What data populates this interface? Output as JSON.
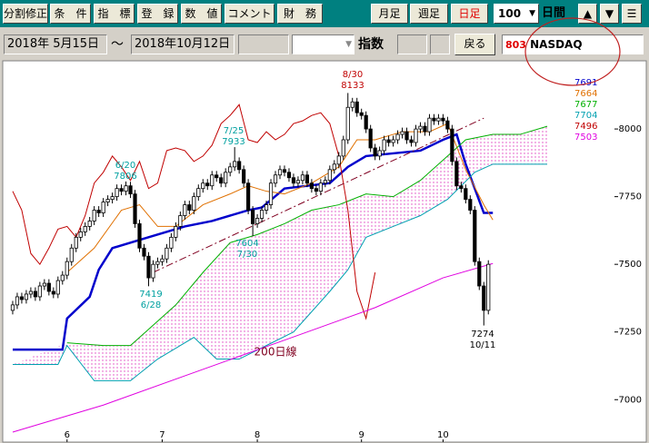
{
  "toolbar": {
    "buttons": [
      "分割修正",
      "条　件",
      "指　標",
      "登　録",
      "数　値",
      "コメント",
      "財　務"
    ],
    "periods": [
      "月足",
      "週足",
      "日足"
    ],
    "days": "100",
    "days_unit": "日間",
    "nav": [
      "▲",
      "▼",
      "☰"
    ]
  },
  "range": {
    "from": "2018年 5月15日",
    "sep": "～",
    "to": "2018年10月12日",
    "kind": "指数",
    "back": "戻る",
    "code": "803",
    "name": "NASDAQ"
  },
  "chart_data": {
    "type": "candlestick",
    "xlim": [
      -2,
      120
    ],
    "ylim": [
      6860,
      8225
    ],
    "xticks": [
      {
        "value": 12,
        "label": "6"
      },
      {
        "value": 33,
        "label": "7"
      },
      {
        "value": 54,
        "label": "8"
      },
      {
        "value": 77,
        "label": "9"
      },
      {
        "value": 95,
        "label": "10"
      }
    ],
    "yticks": [
      7000,
      7250,
      7500,
      7750,
      8000
    ],
    "up_color": "#ffffff",
    "down_color": "#000000",
    "candles": [
      [
        7330,
        7365,
        7315,
        7350
      ],
      [
        7350,
        7395,
        7335,
        7380
      ],
      [
        7380,
        7395,
        7355,
        7370
      ],
      [
        7370,
        7405,
        7355,
        7390
      ],
      [
        7390,
        7415,
        7375,
        7400
      ],
      [
        7400,
        7415,
        7365,
        7380
      ],
      [
        7380,
        7435,
        7365,
        7420
      ],
      [
        7420,
        7445,
        7405,
        7430
      ],
      [
        7430,
        7445,
        7385,
        7400
      ],
      [
        7400,
        7415,
        7375,
        7390
      ],
      [
        7390,
        7455,
        7375,
        7440
      ],
      [
        7440,
        7475,
        7425,
        7460
      ],
      [
        7460,
        7525,
        7445,
        7510
      ],
      [
        7510,
        7575,
        7495,
        7560
      ],
      [
        7560,
        7615,
        7545,
        7600
      ],
      [
        7600,
        7635,
        7585,
        7620
      ],
      [
        7620,
        7655,
        7605,
        7640
      ],
      [
        7640,
        7675,
        7625,
        7660
      ],
      [
        7660,
        7715,
        7645,
        7700
      ],
      [
        7700,
        7715,
        7675,
        7690
      ],
      [
        7690,
        7745,
        7675,
        7730
      ],
      [
        7730,
        7755,
        7715,
        7740
      ],
      [
        7740,
        7765,
        7725,
        7750
      ],
      [
        7750,
        7795,
        7735,
        7780
      ],
      [
        7780,
        7795,
        7755,
        7770
      ],
      [
        7770,
        7806,
        7755,
        7790
      ],
      [
        7790,
        7805,
        7745,
        7760
      ],
      [
        7760,
        7775,
        7635,
        7650
      ],
      [
        7650,
        7665,
        7545,
        7560
      ],
      [
        7560,
        7575,
        7515,
        7530
      ],
      [
        7530,
        7545,
        7419,
        7450
      ],
      [
        7450,
        7515,
        7435,
        7500
      ],
      [
        7500,
        7525,
        7485,
        7510
      ],
      [
        7510,
        7535,
        7495,
        7520
      ],
      [
        7520,
        7575,
        7505,
        7560
      ],
      [
        7560,
        7615,
        7545,
        7600
      ],
      [
        7600,
        7655,
        7585,
        7640
      ],
      [
        7640,
        7695,
        7625,
        7680
      ],
      [
        7680,
        7735,
        7665,
        7720
      ],
      [
        7720,
        7735,
        7685,
        7700
      ],
      [
        7700,
        7765,
        7685,
        7750
      ],
      [
        7750,
        7795,
        7735,
        7780
      ],
      [
        7780,
        7815,
        7765,
        7800
      ],
      [
        7800,
        7815,
        7775,
        7790
      ],
      [
        7790,
        7845,
        7775,
        7830
      ],
      [
        7830,
        7845,
        7805,
        7820
      ],
      [
        7820,
        7835,
        7785,
        7800
      ],
      [
        7800,
        7855,
        7785,
        7840
      ],
      [
        7840,
        7875,
        7825,
        7860
      ],
      [
        7860,
        7933,
        7845,
        7880
      ],
      [
        7880,
        7895,
        7835,
        7850
      ],
      [
        7850,
        7865,
        7785,
        7800
      ],
      [
        7800,
        7815,
        7685,
        7700
      ],
      [
        7700,
        7715,
        7604,
        7650
      ],
      [
        7650,
        7685,
        7635,
        7670
      ],
      [
        7670,
        7715,
        7655,
        7700
      ],
      [
        7700,
        7735,
        7685,
        7720
      ],
      [
        7720,
        7815,
        7705,
        7800
      ],
      [
        7800,
        7845,
        7785,
        7830
      ],
      [
        7830,
        7865,
        7815,
        7850
      ],
      [
        7850,
        7865,
        7825,
        7840
      ],
      [
        7840,
        7855,
        7805,
        7820
      ],
      [
        7820,
        7835,
        7785,
        7800
      ],
      [
        7800,
        7825,
        7785,
        7810
      ],
      [
        7810,
        7845,
        7795,
        7830
      ],
      [
        7830,
        7845,
        7785,
        7800
      ],
      [
        7800,
        7815,
        7765,
        7780
      ],
      [
        7780,
        7795,
        7755,
        7770
      ],
      [
        7770,
        7815,
        7755,
        7800
      ],
      [
        7800,
        7825,
        7785,
        7810
      ],
      [
        7810,
        7865,
        7795,
        7850
      ],
      [
        7850,
        7885,
        7835,
        7870
      ],
      [
        7870,
        7915,
        7855,
        7900
      ],
      [
        7900,
        7975,
        7885,
        7960
      ],
      [
        7960,
        8133,
        7945,
        8080
      ],
      [
        8080,
        8115,
        8065,
        8100
      ],
      [
        8100,
        8115,
        8045,
        8060
      ],
      [
        8060,
        8075,
        8035,
        8050
      ],
      [
        8050,
        8065,
        7985,
        8000
      ],
      [
        8000,
        8015,
        7915,
        7930
      ],
      [
        7930,
        7945,
        7885,
        7900
      ],
      [
        7900,
        7935,
        7885,
        7920
      ],
      [
        7920,
        7975,
        7905,
        7960
      ],
      [
        7960,
        7975,
        7935,
        7950
      ],
      [
        7950,
        7975,
        7935,
        7960
      ],
      [
        7960,
        7995,
        7945,
        7980
      ],
      [
        7980,
        8005,
        7965,
        7990
      ],
      [
        7990,
        8005,
        7945,
        7960
      ],
      [
        7960,
        7975,
        7935,
        7950
      ],
      [
        7950,
        8015,
        7935,
        8000
      ],
      [
        8000,
        8025,
        7985,
        8010
      ],
      [
        8010,
        8025,
        7975,
        7990
      ],
      [
        7990,
        8055,
        7975,
        8040
      ],
      [
        8040,
        8055,
        8015,
        8030
      ],
      [
        8030,
        8055,
        8015,
        8040
      ],
      [
        8040,
        8055,
        8015,
        8030
      ],
      [
        8030,
        8045,
        7985,
        8000
      ],
      [
        8000,
        8015,
        7865,
        7880
      ],
      [
        7880,
        7895,
        7775,
        7790
      ],
      [
        7790,
        7805,
        7765,
        7780
      ],
      [
        7780,
        7795,
        7725,
        7740
      ],
      [
        7740,
        7755,
        7685,
        7700
      ],
      [
        7700,
        7715,
        7495,
        7510
      ],
      [
        7510,
        7525,
        7405,
        7420
      ],
      [
        7420,
        7435,
        7274,
        7330
      ],
      [
        7330,
        7515,
        7315,
        7500
      ]
    ],
    "series": [
      {
        "name": "7691",
        "color": "#0000cc",
        "width": 2.5,
        "x": [
          0,
          11,
          12,
          17,
          18,
          19,
          22,
          30,
          38,
          44,
          52,
          55,
          60,
          70,
          74,
          78,
          90,
          95,
          98,
          100,
          104,
          106
        ],
        "values": [
          7185,
          7185,
          7300,
          7380,
          7430,
          7480,
          7560,
          7600,
          7640,
          7660,
          7700,
          7710,
          7780,
          7800,
          7860,
          7900,
          7920,
          7960,
          7980,
          7870,
          7690,
          7690
        ]
      },
      {
        "name": "7664",
        "color": "#e07000",
        "width": 1,
        "x": [
          12,
          18,
          24,
          28,
          32,
          36,
          42,
          48,
          52,
          56,
          60,
          66,
          72,
          76,
          80,
          86,
          92,
          96,
          100,
          104,
          106
        ],
        "values": [
          7470,
          7560,
          7700,
          7720,
          7640,
          7640,
          7720,
          7760,
          7790,
          7770,
          7760,
          7800,
          7860,
          7960,
          7960,
          7990,
          7990,
          8020,
          7850,
          7720,
          7664
        ]
      },
      {
        "name": "7677",
        "color": "#00b000",
        "width": 1,
        "x": [
          12,
          20,
          26,
          30,
          36,
          42,
          48,
          54,
          60,
          66,
          72,
          78,
          84,
          90,
          96,
          100,
          106,
          112,
          118
        ],
        "values": [
          7210,
          7200,
          7200,
          7260,
          7350,
          7470,
          7580,
          7610,
          7650,
          7700,
          7720,
          7760,
          7750,
          7810,
          7900,
          7960,
          7980,
          7980,
          8010
        ]
      },
      {
        "name": "7704",
        "color": "#00a0b0",
        "width": 1,
        "x": [
          0,
          10,
          12,
          18,
          26,
          32,
          40,
          45,
          50,
          56,
          62,
          70,
          74,
          78,
          84,
          90,
          96,
          102,
          106,
          112,
          118
        ],
        "values": [
          7130,
          7130,
          7200,
          7070,
          7070,
          7150,
          7230,
          7150,
          7150,
          7200,
          7250,
          7400,
          7480,
          7600,
          7640,
          7680,
          7740,
          7840,
          7870,
          7870,
          7870
        ]
      },
      {
        "name": "7496",
        "color": "#c00000",
        "width": 1,
        "x": [
          0,
          2,
          4,
          6,
          8,
          10,
          12,
          14,
          16,
          18,
          20,
          22,
          24,
          26,
          28,
          30,
          32,
          34,
          36,
          38,
          40,
          42,
          44,
          46,
          48,
          50,
          52,
          54,
          56,
          58,
          60,
          62,
          64,
          66,
          68,
          70,
          72,
          74,
          76,
          78,
          80
        ],
        "values": [
          7770,
          7700,
          7540,
          7500,
          7560,
          7630,
          7640,
          7600,
          7680,
          7800,
          7840,
          7900,
          7860,
          7810,
          7880,
          7780,
          7800,
          7920,
          7930,
          7920,
          7880,
          7900,
          7940,
          8020,
          8050,
          8090,
          7960,
          7950,
          7990,
          7960,
          7980,
          8020,
          8030,
          8050,
          8060,
          8020,
          7900,
          7700,
          7400,
          7300,
          7470
        ]
      },
      {
        "name": "7503",
        "color": "#e000e0",
        "width": 1,
        "x": [
          0,
          20,
          40,
          60,
          80,
          95,
          106
        ],
        "values": [
          6880,
          6980,
          7100,
          7220,
          7340,
          7450,
          7503
        ]
      }
    ],
    "cloud_color": "#e040c0",
    "trend_line": {
      "color": "#800020",
      "x": [
        31,
        104
      ],
      "values": [
        7470,
        8040
      ]
    },
    "annotations": [
      {
        "lines": [
          "6/20",
          "7806"
        ],
        "color": "#00a0a0"
      },
      {
        "lines": [
          "7/25",
          "7933"
        ],
        "color": "#00a0a0"
      },
      {
        "lines": [
          "8/30",
          "8133"
        ],
        "color": "#c00000"
      },
      {
        "lines": [
          "7604",
          "7/30"
        ],
        "color": "#00a0a0"
      },
      {
        "lines": [
          "7419",
          "6/28"
        ],
        "color": "#00a0a0"
      },
      {
        "lines": [
          "7274",
          "10/11"
        ],
        "color": "#000000"
      },
      {
        "lines": [
          "200日線"
        ],
        "color": "#800020"
      }
    ]
  }
}
